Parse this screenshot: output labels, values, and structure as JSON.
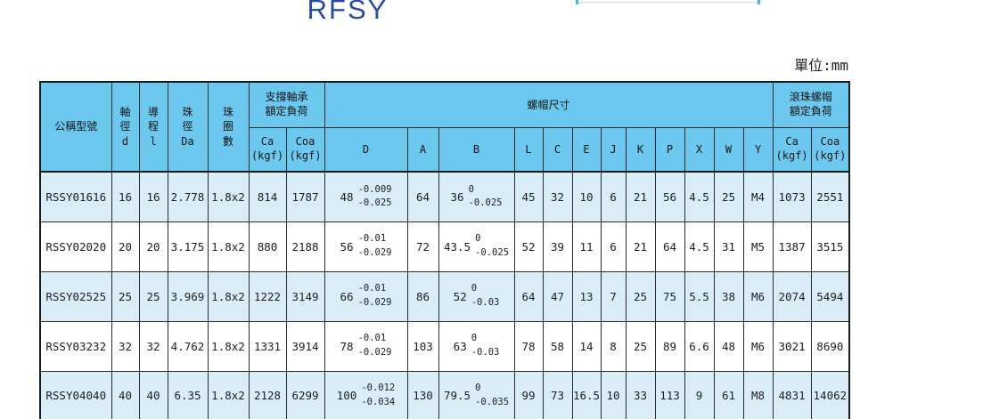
{
  "page": {
    "title": "RFSY",
    "unit_label": "單位:mm"
  },
  "table": {
    "header": {
      "model": "公稱型號",
      "shaft_dia": [
        "軸",
        "徑",
        "d"
      ],
      "lead": [
        "導",
        "程",
        "l"
      ],
      "ball_dia": [
        "珠",
        "徑",
        "Da"
      ],
      "circuits": [
        "珠",
        "圈",
        "數"
      ],
      "support_load_l1": "支撐軸承",
      "support_load_l2": "額定負荷",
      "nut_dims": "螺帽尺寸",
      "ball_nut_load_l1": "滾珠螺帽",
      "ball_nut_load_l2": "額定負荷",
      "ca": "Ca",
      "coa": "Coa",
      "kgf": "(kgf)",
      "dim_cols": [
        "D",
        "A",
        "B",
        "L",
        "C",
        "E",
        "J",
        "K",
        "P",
        "X",
        "W",
        "Y"
      ]
    },
    "rows": [
      {
        "model": "RSSY01616",
        "d": "16",
        "lead": "16",
        "da": "2.778",
        "circuits": "1.8x2",
        "ca1": "814",
        "coa1": "1787",
        "D": {
          "v": "48",
          "up": "-0.009",
          "dn": "-0.025"
        },
        "A": "64",
        "B": {
          "v": "36",
          "up": "0",
          "dn": "-0.025"
        },
        "L": "45",
        "C": "32",
        "E": "10",
        "J": "6",
        "K": "21",
        "P": "56",
        "X": "4.5",
        "W": "25",
        "Y": "M4",
        "ca2": "1073",
        "coa2": "2551"
      },
      {
        "model": "RSSY02020",
        "d": "20",
        "lead": "20",
        "da": "3.175",
        "circuits": "1.8x2",
        "ca1": "880",
        "coa1": "2188",
        "D": {
          "v": "56",
          "up": "-0.01",
          "dn": "-0.029"
        },
        "A": "72",
        "B": {
          "v": "43.5",
          "up": "0",
          "dn": "-0.025"
        },
        "L": "52",
        "C": "39",
        "E": "11",
        "J": "6",
        "K": "21",
        "P": "64",
        "X": "4.5",
        "W": "31",
        "Y": "M5",
        "ca2": "1387",
        "coa2": "3515"
      },
      {
        "model": "RSSY02525",
        "d": "25",
        "lead": "25",
        "da": "3.969",
        "circuits": "1.8x2",
        "ca1": "1222",
        "coa1": "3149",
        "D": {
          "v": "66",
          "up": "-0.01",
          "dn": "-0.029"
        },
        "A": "86",
        "B": {
          "v": "52",
          "up": "0",
          "dn": "-0.03"
        },
        "L": "64",
        "C": "47",
        "E": "13",
        "J": "7",
        "K": "25",
        "P": "75",
        "X": "5.5",
        "W": "38",
        "Y": "M6",
        "ca2": "2074",
        "coa2": "5494"
      },
      {
        "model": "RSSY03232",
        "d": "32",
        "lead": "32",
        "da": "4.762",
        "circuits": "1.8x2",
        "ca1": "1331",
        "coa1": "3914",
        "D": {
          "v": "78",
          "up": "-0.01",
          "dn": "-0.029"
        },
        "A": "103",
        "B": {
          "v": "63",
          "up": "0",
          "dn": "-0.03"
        },
        "L": "78",
        "C": "58",
        "E": "14",
        "J": "8",
        "K": "25",
        "P": "89",
        "X": "6.6",
        "W": "48",
        "Y": "M6",
        "ca2": "3021",
        "coa2": "8690"
      },
      {
        "model": "RSSY04040",
        "d": "40",
        "lead": "40",
        "da": "6.35",
        "circuits": "1.8x2",
        "ca1": "2128",
        "coa1": "6299",
        "D": {
          "v": "100",
          "up": "-0.012",
          "dn": "-0.034"
        },
        "A": "130",
        "B": {
          "v": "79.5",
          "up": "0",
          "dn": "-0.035"
        },
        "L": "99",
        "C": "73",
        "E": "16.5",
        "J": "10",
        "K": "33",
        "P": "113",
        "X": "9",
        "W": "61",
        "Y": "M8",
        "ca2": "4831",
        "coa2": "14062"
      }
    ]
  }
}
